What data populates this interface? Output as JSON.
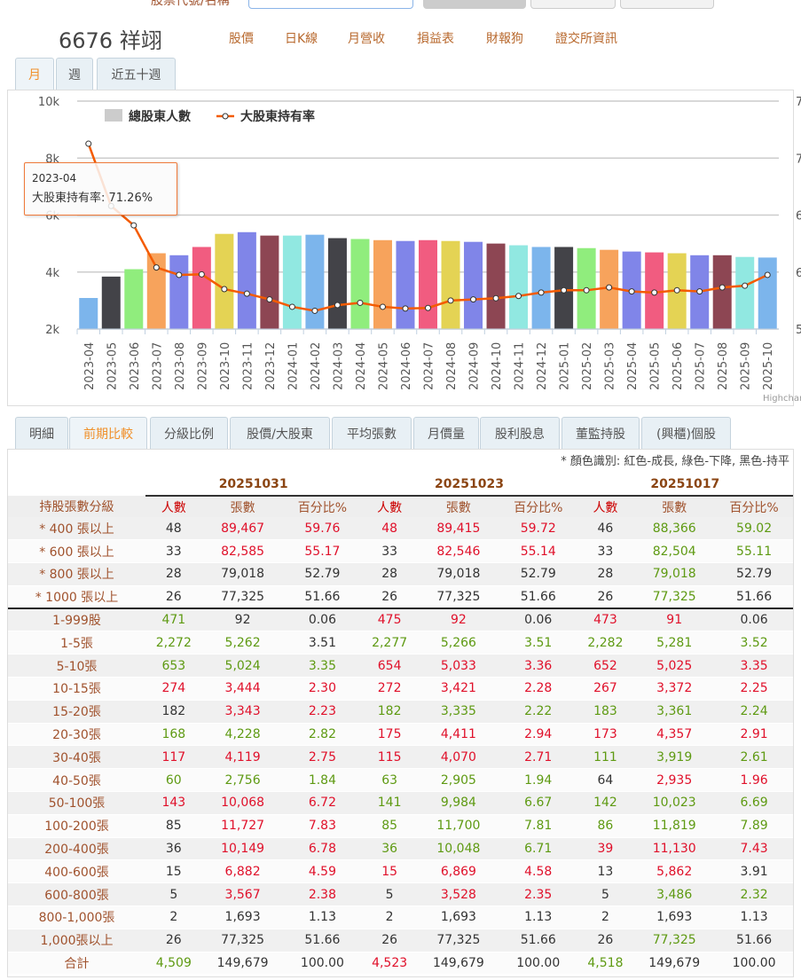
{
  "search": {
    "label": "股票代號/名稱"
  },
  "stock": {
    "title": "6676 祥翊"
  },
  "nav": [
    "股價",
    "日K線",
    "月營收",
    "損益表",
    "財報狗",
    "證交所資訊"
  ],
  "period_tabs": [
    {
      "label": "月",
      "active": true
    },
    {
      "label": "週"
    },
    {
      "label": "近五十週"
    }
  ],
  "tooltip": {
    "date": "2023-04",
    "text": "大股東持有率: 71.26%"
  },
  "credit": "Highcharts",
  "colors": {
    "line": "#f45b00",
    "palette": [
      "#7cb5ec",
      "#434348",
      "#90ed7d",
      "#f7a35c",
      "#8085e9",
      "#f15c80",
      "#e4d354",
      "#8085e8",
      "#8d4653",
      "#91e8e1"
    ],
    "red": "#e0102a",
    "green": "#5e9a12",
    "black": "#333333"
  },
  "chart_data": {
    "type": "bar+line",
    "categories": [
      "2023-04",
      "2023-05",
      "2023-06",
      "2023-07",
      "2023-08",
      "2023-09",
      "2023-10",
      "2023-11",
      "2023-12",
      "2024-01",
      "2024-02",
      "2024-03",
      "2024-04",
      "2024-05",
      "2024-06",
      "2024-07",
      "2024-08",
      "2024-09",
      "2024-10",
      "2024-11",
      "2024-12",
      "2025-01",
      "2025-02",
      "2025-03",
      "2025-04",
      "2025-05",
      "2025-06",
      "2025-07",
      "2025-08",
      "2025-09",
      "2025-10"
    ],
    "series": [
      {
        "name": "總股東人數",
        "type": "bar",
        "axis": "left",
        "values": [
          3090,
          3840,
          4100,
          4660,
          4590,
          4880,
          5340,
          5400,
          5280,
          5280,
          5310,
          5190,
          5160,
          5120,
          5090,
          5120,
          5090,
          5060,
          5000,
          4940,
          4880,
          4880,
          4840,
          4780,
          4720,
          4690,
          4660,
          4590,
          4590,
          4530,
          4509
        ]
      },
      {
        "name": "大股東持有率",
        "type": "line",
        "axis": "right",
        "values": [
          71.26,
          65.8,
          64.1,
          60.4,
          59.75,
          59.8,
          58.5,
          58.1,
          57.6,
          56.95,
          56.6,
          57.1,
          57.3,
          56.95,
          56.8,
          56.85,
          57.5,
          57.6,
          57.7,
          57.9,
          58.2,
          58.4,
          58.4,
          58.65,
          58.3,
          58.2,
          58.4,
          58.3,
          58.65,
          58.8,
          59.75
        ]
      }
    ],
    "left_axis": {
      "ticks": [
        "2k",
        "4k",
        "6k",
        "8k",
        "10k"
      ],
      "range": [
        2000,
        10000
      ]
    },
    "right_axis": {
      "ticks": [
        "5",
        "6",
        "6",
        "7",
        "7"
      ],
      "range": [
        55,
        75
      ]
    },
    "legend": "top-left",
    "grid": true
  },
  "detail_tabs": [
    {
      "label": "明細"
    },
    {
      "label": "前期比較",
      "active": true
    },
    {
      "label": "分級比例"
    },
    {
      "label": "股價/大股東"
    },
    {
      "label": "平均張數"
    },
    {
      "label": "月價量"
    },
    {
      "label": "股利股息"
    },
    {
      "label": "董監持股"
    },
    {
      "label": "(興櫃)個股"
    }
  ],
  "table": {
    "note": "* 顏色識別: 紅色-成長, 綠色-下降, 黑色-持平",
    "dates": [
      "20251031",
      "20251023",
      "20251017"
    ],
    "label_header": "持股張數分級",
    "sub_headers": [
      "人數",
      "張數",
      "百分比%"
    ],
    "rows": [
      {
        "label": "* 400 張以上",
        "cells": [
          [
            "48",
            "k"
          ],
          [
            "89,467",
            "r"
          ],
          [
            "59.76",
            "r"
          ],
          [
            "48",
            "r"
          ],
          [
            "89,415",
            "r"
          ],
          [
            "59.72",
            "r"
          ],
          [
            "46",
            "k"
          ],
          [
            "88,366",
            "g"
          ],
          [
            "59.02",
            "g"
          ]
        ]
      },
      {
        "label": "* 600 張以上",
        "cells": [
          [
            "33",
            "k"
          ],
          [
            "82,585",
            "r"
          ],
          [
            "55.17",
            "r"
          ],
          [
            "33",
            "k"
          ],
          [
            "82,546",
            "r"
          ],
          [
            "55.14",
            "r"
          ],
          [
            "33",
            "k"
          ],
          [
            "82,504",
            "g"
          ],
          [
            "55.11",
            "g"
          ]
        ]
      },
      {
        "label": "* 800 張以上",
        "cells": [
          [
            "28",
            "k"
          ],
          [
            "79,018",
            "k"
          ],
          [
            "52.79",
            "k"
          ],
          [
            "28",
            "k"
          ],
          [
            "79,018",
            "k"
          ],
          [
            "52.79",
            "k"
          ],
          [
            "28",
            "k"
          ],
          [
            "79,018",
            "g"
          ],
          [
            "52.79",
            "k"
          ]
        ]
      },
      {
        "label": "* 1000 張以上",
        "cells": [
          [
            "26",
            "k"
          ],
          [
            "77,325",
            "k"
          ],
          [
            "51.66",
            "k"
          ],
          [
            "26",
            "k"
          ],
          [
            "77,325",
            "k"
          ],
          [
            "51.66",
            "k"
          ],
          [
            "26",
            "k"
          ],
          [
            "77,325",
            "g"
          ],
          [
            "51.66",
            "k"
          ]
        ]
      },
      {
        "label": "1-999股",
        "cells": [
          [
            "471",
            "g"
          ],
          [
            "92",
            "k"
          ],
          [
            "0.06",
            "k"
          ],
          [
            "475",
            "r"
          ],
          [
            "92",
            "r"
          ],
          [
            "0.06",
            "k"
          ],
          [
            "473",
            "r"
          ],
          [
            "91",
            "r"
          ],
          [
            "0.06",
            "k"
          ]
        ]
      },
      {
        "label": "1-5張",
        "cells": [
          [
            "2,272",
            "g"
          ],
          [
            "5,262",
            "g"
          ],
          [
            "3.51",
            "k"
          ],
          [
            "2,277",
            "g"
          ],
          [
            "5,266",
            "g"
          ],
          [
            "3.51",
            "g"
          ],
          [
            "2,282",
            "g"
          ],
          [
            "5,281",
            "g"
          ],
          [
            "3.52",
            "g"
          ]
        ]
      },
      {
        "label": "5-10張",
        "cells": [
          [
            "653",
            "g"
          ],
          [
            "5,024",
            "g"
          ],
          [
            "3.35",
            "g"
          ],
          [
            "654",
            "r"
          ],
          [
            "5,033",
            "r"
          ],
          [
            "3.36",
            "r"
          ],
          [
            "652",
            "r"
          ],
          [
            "5,025",
            "r"
          ],
          [
            "3.35",
            "r"
          ]
        ]
      },
      {
        "label": "10-15張",
        "cells": [
          [
            "274",
            "r"
          ],
          [
            "3,444",
            "r"
          ],
          [
            "2.30",
            "r"
          ],
          [
            "272",
            "r"
          ],
          [
            "3,421",
            "r"
          ],
          [
            "2.28",
            "r"
          ],
          [
            "267",
            "r"
          ],
          [
            "3,372",
            "r"
          ],
          [
            "2.25",
            "r"
          ]
        ]
      },
      {
        "label": "15-20張",
        "cells": [
          [
            "182",
            "k"
          ],
          [
            "3,343",
            "r"
          ],
          [
            "2.23",
            "r"
          ],
          [
            "182",
            "g"
          ],
          [
            "3,335",
            "g"
          ],
          [
            "2.22",
            "g"
          ],
          [
            "183",
            "g"
          ],
          [
            "3,361",
            "g"
          ],
          [
            "2.24",
            "g"
          ]
        ]
      },
      {
        "label": "20-30張",
        "cells": [
          [
            "168",
            "g"
          ],
          [
            "4,228",
            "g"
          ],
          [
            "2.82",
            "g"
          ],
          [
            "175",
            "r"
          ],
          [
            "4,411",
            "r"
          ],
          [
            "2.94",
            "r"
          ],
          [
            "173",
            "r"
          ],
          [
            "4,357",
            "r"
          ],
          [
            "2.91",
            "r"
          ]
        ]
      },
      {
        "label": "30-40張",
        "cells": [
          [
            "117",
            "r"
          ],
          [
            "4,119",
            "r"
          ],
          [
            "2.75",
            "r"
          ],
          [
            "115",
            "r"
          ],
          [
            "4,070",
            "r"
          ],
          [
            "2.71",
            "r"
          ],
          [
            "111",
            "g"
          ],
          [
            "3,919",
            "g"
          ],
          [
            "2.61",
            "g"
          ]
        ]
      },
      {
        "label": "40-50張",
        "cells": [
          [
            "60",
            "g"
          ],
          [
            "2,756",
            "g"
          ],
          [
            "1.84",
            "g"
          ],
          [
            "63",
            "g"
          ],
          [
            "2,905",
            "g"
          ],
          [
            "1.94",
            "g"
          ],
          [
            "64",
            "k"
          ],
          [
            "2,935",
            "r"
          ],
          [
            "1.96",
            "r"
          ]
        ]
      },
      {
        "label": "50-100張",
        "cells": [
          [
            "143",
            "r"
          ],
          [
            "10,068",
            "r"
          ],
          [
            "6.72",
            "r"
          ],
          [
            "141",
            "g"
          ],
          [
            "9,984",
            "g"
          ],
          [
            "6.67",
            "g"
          ],
          [
            "142",
            "g"
          ],
          [
            "10,023",
            "g"
          ],
          [
            "6.69",
            "g"
          ]
        ]
      },
      {
        "label": "100-200張",
        "cells": [
          [
            "85",
            "k"
          ],
          [
            "11,727",
            "r"
          ],
          [
            "7.83",
            "r"
          ],
          [
            "85",
            "g"
          ],
          [
            "11,700",
            "g"
          ],
          [
            "7.81",
            "g"
          ],
          [
            "86",
            "g"
          ],
          [
            "11,819",
            "g"
          ],
          [
            "7.89",
            "g"
          ]
        ]
      },
      {
        "label": "200-400張",
        "cells": [
          [
            "36",
            "k"
          ],
          [
            "10,149",
            "r"
          ],
          [
            "6.78",
            "r"
          ],
          [
            "36",
            "g"
          ],
          [
            "10,048",
            "g"
          ],
          [
            "6.71",
            "g"
          ],
          [
            "39",
            "r"
          ],
          [
            "11,130",
            "r"
          ],
          [
            "7.43",
            "r"
          ]
        ]
      },
      {
        "label": "400-600張",
        "cells": [
          [
            "15",
            "k"
          ],
          [
            "6,882",
            "r"
          ],
          [
            "4.59",
            "r"
          ],
          [
            "15",
            "r"
          ],
          [
            "6,869",
            "r"
          ],
          [
            "4.58",
            "r"
          ],
          [
            "13",
            "k"
          ],
          [
            "5,862",
            "r"
          ],
          [
            "3.91",
            "k"
          ]
        ]
      },
      {
        "label": "600-800張",
        "cells": [
          [
            "5",
            "k"
          ],
          [
            "3,567",
            "r"
          ],
          [
            "2.38",
            "r"
          ],
          [
            "5",
            "k"
          ],
          [
            "3,528",
            "r"
          ],
          [
            "2.35",
            "r"
          ],
          [
            "5",
            "k"
          ],
          [
            "3,486",
            "g"
          ],
          [
            "2.32",
            "g"
          ]
        ]
      },
      {
        "label": "800-1,000張",
        "cells": [
          [
            "2",
            "k"
          ],
          [
            "1,693",
            "k"
          ],
          [
            "1.13",
            "k"
          ],
          [
            "2",
            "k"
          ],
          [
            "1,693",
            "k"
          ],
          [
            "1.13",
            "k"
          ],
          [
            "2",
            "k"
          ],
          [
            "1,693",
            "k"
          ],
          [
            "1.13",
            "k"
          ]
        ]
      },
      {
        "label": "1,000張以上",
        "cells": [
          [
            "26",
            "k"
          ],
          [
            "77,325",
            "k"
          ],
          [
            "51.66",
            "k"
          ],
          [
            "26",
            "k"
          ],
          [
            "77,325",
            "k"
          ],
          [
            "51.66",
            "k"
          ],
          [
            "26",
            "k"
          ],
          [
            "77,325",
            "g"
          ],
          [
            "51.66",
            "k"
          ]
        ]
      },
      {
        "label": "合計",
        "cells": [
          [
            "4,509",
            "g"
          ],
          [
            "149,679",
            "k"
          ],
          [
            "100.00",
            "k"
          ],
          [
            "4,523",
            "r"
          ],
          [
            "149,679",
            "k"
          ],
          [
            "100.00",
            "k"
          ],
          [
            "4,518",
            "g"
          ],
          [
            "149,679",
            "k"
          ],
          [
            "100.00",
            "k"
          ]
        ]
      }
    ]
  }
}
